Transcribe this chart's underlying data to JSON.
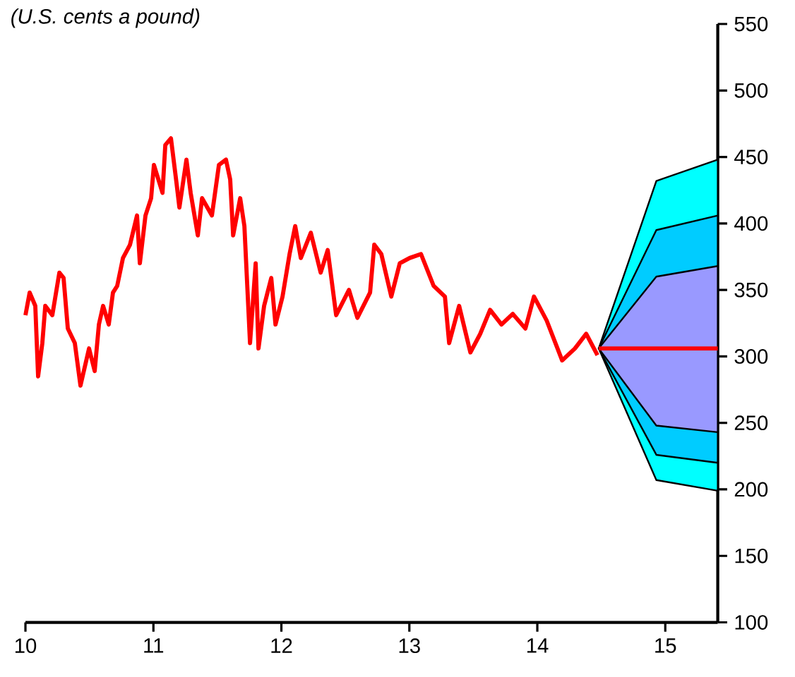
{
  "chart_data": {
    "type": "line",
    "annotations": [
      "(U.S. cents a pound)"
    ],
    "xlim": [
      10,
      15.41
    ],
    "xticks": [
      10,
      11,
      12,
      13,
      14,
      15
    ],
    "ylim": [
      100,
      550
    ],
    "yticks": [
      100,
      150,
      200,
      250,
      300,
      350,
      400,
      450,
      500,
      550
    ],
    "grid": false,
    "line_style": "solid",
    "marker": "none",
    "series": [
      {
        "type": "area",
        "color": "#00ffff",
        "x": [
          14.48,
          14.93,
          15.41
        ],
        "values": [
          null,
          null,
          null
        ],
        "lower": [
          306,
          207,
          199
        ],
        "upper": [
          306,
          432,
          448
        ]
      },
      {
        "type": "area",
        "color": "#00ccff",
        "x": [
          14.48,
          14.93,
          15.41
        ],
        "values": [
          null,
          null,
          null
        ],
        "lower": [
          306,
          226,
          220
        ],
        "upper": [
          306,
          395,
          406
        ]
      },
      {
        "type": "area",
        "color": "#9999ff",
        "x": [
          14.48,
          14.93,
          15.41
        ],
        "values": [
          null,
          null,
          null
        ],
        "lower": [
          306,
          248,
          243
        ],
        "upper": [
          306,
          360,
          368
        ]
      },
      {
        "color": "#ff0000",
        "x": [
          10.0,
          10.033,
          10.077,
          10.099,
          10.132,
          10.155,
          10.21,
          10.265,
          10.298,
          10.331,
          10.386,
          10.43,
          10.497,
          10.541,
          10.574,
          10.607,
          10.651,
          10.684,
          10.717,
          10.762,
          10.817,
          10.872,
          10.894,
          10.938,
          10.982,
          11.004,
          11.071,
          11.093,
          11.137,
          11.181,
          11.203,
          11.258,
          11.291,
          11.347,
          11.38,
          11.457,
          11.512,
          11.567,
          11.6,
          11.623,
          11.678,
          11.711,
          11.755,
          11.799,
          11.821,
          11.865,
          11.921,
          11.954,
          12.009,
          12.064,
          12.108,
          12.152,
          12.23,
          12.307,
          12.362,
          12.428,
          12.528,
          12.594,
          12.693,
          12.726,
          12.781,
          12.859,
          12.925,
          13.002,
          13.091,
          13.19,
          13.278,
          13.311,
          13.389,
          13.477,
          13.554,
          13.631,
          13.72,
          13.808,
          13.907,
          13.974,
          14.073,
          14.194,
          14.294,
          14.382,
          14.47
        ],
        "values": [
          331,
          348,
          338,
          285,
          310,
          338,
          331,
          363,
          359,
          321,
          310,
          278,
          306,
          289,
          324,
          338,
          324,
          348,
          353,
          374,
          384,
          406,
          370,
          406,
          419,
          444,
          423,
          459,
          464,
          430,
          412,
          448,
          423,
          391,
          419,
          406,
          444,
          448,
          433,
          391,
          419,
          398,
          310,
          370,
          306,
          338,
          359,
          324,
          345,
          377,
          398,
          374,
          393,
          363,
          380,
          331,
          350,
          329,
          348,
          384,
          377,
          345,
          370,
          374,
          377,
          353,
          345,
          310,
          338,
          303,
          317,
          335,
          324,
          332,
          321,
          345,
          327,
          297,
          306,
          317,
          301
        ]
      },
      {
        "color": "#ff0000",
        "x": [
          14.48,
          14.93,
          15.41
        ],
        "values": [
          306,
          306,
          306
        ]
      }
    ]
  }
}
